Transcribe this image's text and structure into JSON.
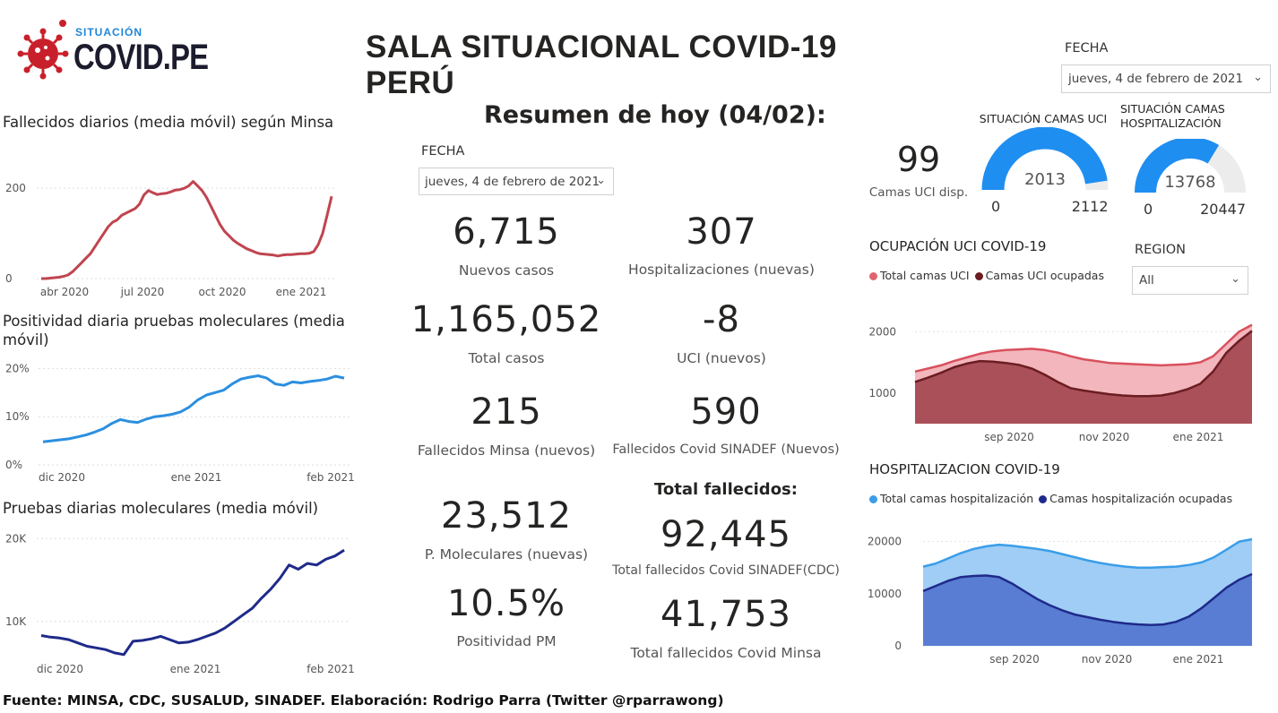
{
  "header": {
    "logo_small": "SITUACIÓN",
    "logo_big": "COVID.PE",
    "title": "SALA SITUACIONAL COVID-19 PERÚ",
    "fecha_label": "FECHA",
    "fecha_value": "jueves, 4 de febrero de 2021"
  },
  "summary": {
    "title": "Resumen de hoy (04/02):",
    "fecha_label": "FECHA",
    "fecha_value": "jueves, 4 de febrero de 2021",
    "kpis": {
      "nuevos_casos": {
        "value": "6,715",
        "label": "Nuevos casos"
      },
      "hospitalizaciones": {
        "value": "307",
        "label": "Hospitalizaciones (nuevas)"
      },
      "total_casos": {
        "value": "1,165,052",
        "label": "Total casos"
      },
      "uci": {
        "value": "-8",
        "label": "UCI (nuevos)"
      },
      "fallecidos_minsa": {
        "value": "215",
        "label": "Fallecidos Minsa (nuevos)"
      },
      "fallecidos_sinadef": {
        "value": "590",
        "label": "Fallecidos Covid SINADEF (Nuevos)"
      },
      "moleculares": {
        "value": "23,512",
        "label": "P. Moleculares (nuevas)"
      },
      "positividad": {
        "value": "10.5%",
        "label": "Positividad PM"
      }
    },
    "total_fallecidos_title": "Total fallecidos:",
    "total_sinadef": {
      "value": "92,445",
      "label": "Total fallecidos Covid SINADEF(CDC)"
    },
    "total_minsa": {
      "value": "41,753",
      "label": "Total fallecidos Covid Minsa"
    }
  },
  "uci_card": {
    "value": "99",
    "label": "Camas UCI disp."
  },
  "gauges": [
    {
      "title": "SITUACIÓN CAMAS UCI",
      "value": 2013,
      "min": 0,
      "max": 2112,
      "value_label": "2013",
      "min_label": "0",
      "max_label": "2112"
    },
    {
      "title": "SITUACIÓN CAMAS HOSPITALIZACIÓN",
      "value": 13768,
      "min": 0,
      "max": 20447,
      "value_label": "13768",
      "min_label": "0",
      "max_label": "20447"
    }
  ],
  "region": {
    "label": "REGION",
    "value": "All"
  },
  "colors": {
    "deaths": "#c0454f",
    "positivity": "#2b8fe0",
    "tests": "#1f2a8a",
    "uci_total": "#e07a82",
    "uci_occupied": "#6b1d22",
    "hosp_total": "#3a9de8",
    "hosp_occupied": "#1f2a8a",
    "gauge": "#1f8ef1"
  },
  "footer": "Fuente: MINSA, CDC, SUSALUD, SINADEF. Elaboración: Rodrigo Parra (Twitter @rparrawong)",
  "chart_data": [
    {
      "id": "fallecidos",
      "type": "line",
      "title": "Fallecidos diarios (media móvil) según Minsa",
      "x_ticks": [
        "abr 2020",
        "jul 2020",
        "oct 2020",
        "ene 2021"
      ],
      "y_ticks": [
        "0",
        "200"
      ],
      "ylim": [
        0,
        240
      ],
      "values": [
        0,
        0,
        1,
        2,
        3,
        5,
        8,
        15,
        25,
        35,
        45,
        55,
        70,
        85,
        100,
        115,
        125,
        130,
        140,
        145,
        150,
        155,
        165,
        185,
        195,
        190,
        186,
        188,
        189,
        192,
        196,
        197,
        200,
        205,
        215,
        205,
        195,
        180,
        160,
        140,
        120,
        105,
        95,
        85,
        78,
        72,
        66,
        62,
        58,
        55,
        54,
        53,
        52,
        50,
        52,
        53,
        53,
        54,
        55,
        55,
        56,
        60,
        75,
        100,
        140,
        182
      ]
    },
    {
      "id": "positividad",
      "type": "line",
      "title": "Positividad diaria pruebas moleculares (media móvil)",
      "x_ticks": [
        "dic 2020",
        "ene 2021",
        "feb 2021"
      ],
      "y_ticks": [
        "0%",
        "10%",
        "20%"
      ],
      "ylim": [
        0,
        21
      ],
      "values": [
        4.8,
        5.0,
        5.2,
        5.4,
        5.8,
        6.2,
        6.8,
        7.5,
        8.6,
        9.4,
        9.0,
        8.8,
        9.5,
        10.0,
        10.2,
        10.5,
        11.0,
        12.0,
        13.5,
        14.5,
        15.0,
        15.5,
        16.8,
        17.8,
        18.2,
        18.5,
        18.0,
        16.8,
        16.5,
        17.2,
        17.0,
        17.3,
        17.5,
        17.8,
        18.4,
        18.0
      ]
    },
    {
      "id": "pruebas",
      "type": "line",
      "title": "Pruebas diarias moleculares (media móvil)",
      "x_ticks": [
        "dic 2020",
        "ene 2021",
        "feb 2021"
      ],
      "y_ticks": [
        "10K",
        "20K"
      ],
      "ylim": [
        5000,
        21000
      ],
      "values": [
        8300,
        8100,
        8000,
        7800,
        7400,
        7000,
        6800,
        6600,
        6200,
        6000,
        7600,
        7700,
        7900,
        8200,
        7800,
        7400,
        7500,
        7800,
        8200,
        8600,
        9200,
        10000,
        10800,
        11600,
        12800,
        13900,
        15200,
        16800,
        16300,
        17000,
        16800,
        17500,
        17900,
        18600
      ]
    },
    {
      "id": "uci",
      "type": "area",
      "title": "OCUPACIÓN UCI COVID-19",
      "x_ticks": [
        "sep 2020",
        "nov 2020",
        "ene 2021"
      ],
      "y_ticks": [
        "1000",
        "2000"
      ],
      "ylim": [
        500,
        2150
      ],
      "series": [
        {
          "name": "Total camas UCI",
          "values": [
            1350,
            1400,
            1450,
            1520,
            1580,
            1640,
            1680,
            1700,
            1710,
            1720,
            1700,
            1660,
            1600,
            1550,
            1520,
            1490,
            1480,
            1470,
            1460,
            1450,
            1460,
            1470,
            1500,
            1600,
            1800,
            2000,
            2112
          ]
        },
        {
          "name": "Camas UCI ocupadas",
          "values": [
            1180,
            1250,
            1330,
            1420,
            1480,
            1520,
            1510,
            1490,
            1460,
            1400,
            1300,
            1180,
            1080,
            1040,
            1010,
            980,
            960,
            950,
            950,
            960,
            1000,
            1060,
            1150,
            1350,
            1650,
            1850,
            2013
          ]
        }
      ]
    },
    {
      "id": "hosp",
      "type": "area",
      "title": "HOSPITALIZACION COVID-19",
      "x_ticks": [
        "sep 2020",
        "nov 2020",
        "ene 2021"
      ],
      "y_ticks": [
        "0",
        "10000",
        "20000"
      ],
      "ylim": [
        0,
        22000
      ],
      "series": [
        {
          "name": "Total camas hospitalización",
          "values": [
            15200,
            15800,
            16800,
            17800,
            18600,
            19100,
            19400,
            19200,
            18900,
            18600,
            18200,
            17600,
            17000,
            16400,
            15900,
            15500,
            15200,
            15000,
            15000,
            15100,
            15200,
            15500,
            16000,
            17000,
            18500,
            20000,
            20447
          ]
        },
        {
          "name": "Camas hospitalización ocupadas",
          "values": [
            10500,
            11500,
            12500,
            13200,
            13400,
            13500,
            13200,
            12000,
            10500,
            9000,
            7800,
            6800,
            6000,
            5500,
            5000,
            4600,
            4300,
            4100,
            4000,
            4100,
            4600,
            5600,
            7200,
            9200,
            11200,
            12700,
            13768
          ]
        }
      ]
    }
  ]
}
